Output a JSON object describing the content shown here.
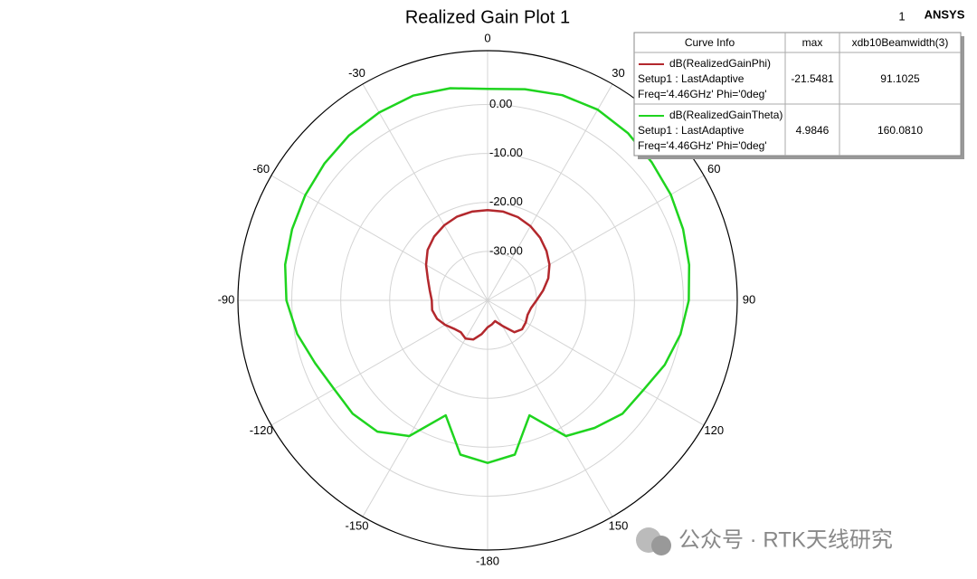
{
  "chart_data": {
    "type": "polar",
    "title": "Realized Gain Plot 1",
    "page_number": "1",
    "brand": "ANSYS",
    "watermark": "公众号 · RTK天线研究",
    "legend_headers": [
      "Curve Info",
      "max",
      "xdb10Beamwidth(3)"
    ],
    "rlim": [
      -40,
      11
    ],
    "rticks": [
      {
        "value": -30,
        "label": "-30.00"
      },
      {
        "value": -20,
        "label": "-20.00"
      },
      {
        "value": -10,
        "label": "-10.00"
      },
      {
        "value": 0,
        "label": "0.00"
      }
    ],
    "angle_ticks": [
      0,
      30,
      60,
      90,
      120,
      150,
      -180,
      -150,
      -120,
      -90,
      -60,
      -30
    ],
    "theta": [
      -180,
      -170,
      -160,
      -150,
      -140,
      -130,
      -120,
      -110,
      -100,
      -90,
      -80,
      -70,
      -60,
      -50,
      -40,
      -30,
      -20,
      -10,
      0,
      10,
      20,
      30,
      40,
      50,
      60,
      70,
      80,
      90,
      100,
      110,
      120,
      130,
      140,
      150,
      160,
      170
    ],
    "series": [
      {
        "name": "dB(RealizedGainPhi)",
        "setup": "Setup1 : LastAdaptive",
        "freq": "Freq='4.46GHz' Phi='0deg'",
        "max": -21.5481,
        "beamwidth": 91.1025,
        "color": "#b3282d",
        "values": [
          -34.5,
          -33,
          -31.5,
          -31,
          -31.5,
          -31,
          -30,
          -29,
          -28.5,
          -28.6,
          -28,
          -27,
          -25.5,
          -24,
          -23,
          -22.3,
          -21.8,
          -21.6,
          -21.55,
          -21.6,
          -21.9,
          -22.5,
          -23.3,
          -24.3,
          -25.4,
          -26.8,
          -28.5,
          -30,
          -31,
          -31.3,
          -31,
          -30.8,
          -31.5,
          -34,
          -35.5,
          -35
        ]
      },
      {
        "name": "dB(RealizedGainTheta)",
        "setup": "Setup1 : LastAdaptive",
        "freq": "Freq='4.46GHz' Phi='0deg'",
        "max": 4.9846,
        "beamwidth": {
          "value": 160.081,
          "label": "160.0810"
        },
        "color": "#1fd41f",
        "values": [
          -6.8,
          -8,
          -15,
          -8,
          -5,
          -4,
          -3.8,
          -2.5,
          -0.5,
          1.1,
          2,
          2.5,
          3,
          3.5,
          4,
          4.3,
          4.5,
          4,
          3.2,
          3.8,
          4.6,
          4.98,
          4.6,
          3.8,
          3.2,
          2.5,
          1.8,
          1.1,
          0,
          -1.5,
          -3.3,
          -4,
          -6,
          -8,
          -15,
          -8
        ]
      }
    ]
  }
}
